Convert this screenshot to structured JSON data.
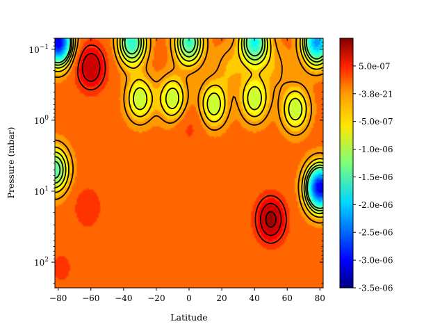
{
  "chart_data": {
    "type": "heatmap",
    "title": "",
    "xlabel": "Latitude",
    "ylabel": "Pressure (mbar)",
    "x_ticks": [
      "−80",
      "−60",
      "−40",
      "−20",
      "0",
      "20",
      "40",
      "60",
      "80"
    ],
    "x_tick_values": [
      -80,
      -60,
      -40,
      -20,
      0,
      20,
      40,
      60,
      80
    ],
    "xlim": [
      -82,
      82
    ],
    "y_scale": "log",
    "y_inverted": true,
    "ylim": [
      0.07,
      230
    ],
    "y_ticks": [
      {
        "value": 0.1,
        "base": "10",
        "exp": "−1"
      },
      {
        "value": 1,
        "base": "10",
        "exp": "0"
      },
      {
        "value": 10,
        "base": "10",
        "exp": "1"
      },
      {
        "value": 100,
        "base": "10",
        "exp": "2"
      }
    ],
    "colormap": "jet",
    "colorbar": {
      "vmin": -3.5e-06,
      "vmax": 1e-06,
      "tick_labels": [
        "5.0e-07",
        "-3.8e-21",
        "-5.0e-07",
        "-1.0e-06",
        "-1.5e-06",
        "-2.0e-06",
        "-2.5e-06",
        "-3.0e-06",
        "-3.5e-06"
      ],
      "tick_values": [
        5e-07,
        0,
        -5e-07,
        -1e-06,
        -1.5e-06,
        -2e-06,
        -2.5e-06,
        -3e-06,
        -3.5e-06
      ]
    },
    "features": [
      {
        "lat": -60,
        "pressure": 0.18,
        "value": 8e-07,
        "kind": "max"
      },
      {
        "lat": 0,
        "pressure": 1.2,
        "value": 2e-07,
        "kind": "max"
      },
      {
        "lat": 25,
        "pressure": 0.18,
        "value": -3e-07,
        "kind": "max"
      },
      {
        "lat": 52,
        "pressure": 0.18,
        "value": -2.5e-07,
        "kind": "max"
      },
      {
        "lat": 50,
        "pressure": 25,
        "value": 9e-07,
        "kind": "max"
      },
      {
        "lat": -62,
        "pressure": 17,
        "value": 3e-07,
        "kind": "max"
      },
      {
        "lat": -78,
        "pressure": 120,
        "value": 2e-07,
        "kind": "max"
      },
      {
        "lat": 75,
        "pressure": 110,
        "value": 1.5e-07,
        "kind": "max"
      },
      {
        "lat": -80,
        "pressure": 0.08,
        "value": -3e-06,
        "kind": "min"
      },
      {
        "lat": 78,
        "pressure": 0.08,
        "value": -2.2e-06,
        "kind": "min"
      },
      {
        "lat": 80,
        "pressure": 9,
        "value": -3e-06,
        "kind": "min"
      },
      {
        "lat": -35,
        "pressure": 0.08,
        "value": -1.6e-06,
        "kind": "min"
      },
      {
        "lat": 0,
        "pressure": 0.08,
        "value": -1.5e-06,
        "kind": "min"
      },
      {
        "lat": 40,
        "pressure": 0.08,
        "value": -1.7e-06,
        "kind": "min"
      },
      {
        "lat": -82,
        "pressure": 5,
        "value": -1.4e-06,
        "kind": "min"
      },
      {
        "lat": -10,
        "pressure": 0.5,
        "value": -9e-07,
        "kind": "min"
      },
      {
        "lat": 15,
        "pressure": 0.6,
        "value": -9e-07,
        "kind": "min"
      },
      {
        "lat": 40,
        "pressure": 0.5,
        "value": -9e-07,
        "kind": "min"
      },
      {
        "lat": -30,
        "pressure": 0.5,
        "value": -9e-07,
        "kind": "min"
      },
      {
        "lat": 65,
        "pressure": 0.7,
        "value": -9e-07,
        "kind": "min"
      }
    ],
    "grid": false,
    "legend": "colorbar-right"
  }
}
